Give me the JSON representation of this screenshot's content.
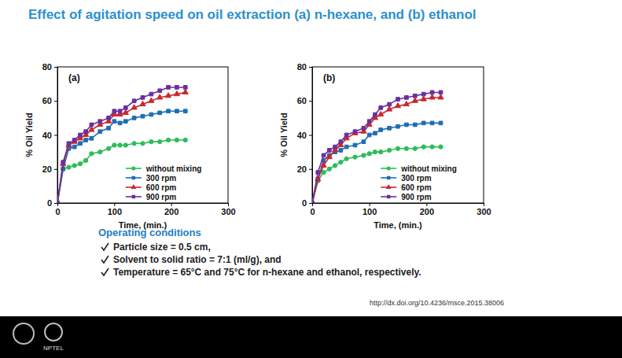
{
  "slide": {
    "title": "Effect of agitation speed on oil extraction (a) n-hexane, and (b) ethanol",
    "conditions_heading": "Operating conditions",
    "conditions": [
      "Particle size = 0.5 cm,",
      "Solvent to solid ratio = 7:1 (ml/g), and",
      "Temperature = 65°C and 75°C for n-hexane and ethanol, respectively."
    ],
    "source": "http://dx.doi.org/10.4236/msce.2015.38006"
  },
  "footer": {
    "label": "NPTEL"
  },
  "chart_data": [
    {
      "type": "line",
      "title": "(a)",
      "x_label": "Time, (min.)",
      "y_label": "% Oil Yield",
      "x": [
        0,
        10,
        20,
        30,
        40,
        50,
        60,
        75,
        90,
        100,
        110,
        120,
        135,
        150,
        165,
        180,
        195,
        210,
        225
      ],
      "xlim": [
        0,
        300
      ],
      "xticks": [
        0,
        100,
        200,
        300
      ],
      "ylim": [
        0,
        80
      ],
      "yticks": [
        0,
        20,
        40,
        60,
        80
      ],
      "grid": false,
      "legend": "lower right",
      "series": [
        {
          "name": "without mixing",
          "color": "#2dbd5a",
          "marker": "circle",
          "values": [
            0,
            20,
            21,
            22,
            23,
            25,
            29,
            30,
            32,
            34,
            34,
            34,
            35,
            35,
            36,
            36,
            37,
            37,
            37
          ]
        },
        {
          "name": "300 rpm",
          "color": "#1f6db5",
          "marker": "square",
          "values": [
            0,
            20,
            32,
            33,
            35,
            37,
            38,
            42,
            44,
            48,
            47,
            48,
            50,
            51,
            52,
            53,
            54,
            54,
            54
          ]
        },
        {
          "name": "600 rpm",
          "color": "#c8282e",
          "marker": "triangle",
          "values": [
            0,
            23,
            34,
            36,
            38,
            40,
            43,
            46,
            48,
            52,
            52,
            53,
            56,
            58,
            60,
            62,
            63,
            64,
            65
          ]
        },
        {
          "name": "900 rpm",
          "color": "#6a2fa0",
          "marker": "square",
          "values": [
            0,
            24,
            35,
            37,
            40,
            42,
            46,
            48,
            50,
            54,
            54,
            56,
            60,
            62,
            64,
            66,
            68,
            68,
            68
          ]
        }
      ]
    },
    {
      "type": "line",
      "title": "(b)",
      "x_label": "Time, (min.)",
      "y_label": "% Oil Yield",
      "x": [
        0,
        10,
        20,
        30,
        40,
        50,
        60,
        75,
        90,
        100,
        110,
        120,
        135,
        150,
        165,
        180,
        195,
        210,
        225
      ],
      "xlim": [
        0,
        300
      ],
      "xticks": [
        0,
        100,
        200,
        300
      ],
      "ylim": [
        0,
        80
      ],
      "yticks": [
        0,
        20,
        40,
        60,
        80
      ],
      "grid": false,
      "legend": "lower right",
      "series": [
        {
          "name": "without mixing",
          "color": "#2dbd5a",
          "marker": "circle",
          "values": [
            0,
            13,
            18,
            20,
            22,
            24,
            26,
            27,
            28,
            29,
            30,
            30,
            31,
            32,
            32,
            32,
            33,
            33,
            33
          ]
        },
        {
          "name": "300 rpm",
          "color": "#1f6db5",
          "marker": "square",
          "values": [
            0,
            14,
            25,
            28,
            30,
            31,
            33,
            34,
            36,
            40,
            41,
            43,
            44,
            45,
            46,
            46,
            47,
            47,
            47
          ]
        },
        {
          "name": "600 rpm",
          "color": "#c8282e",
          "marker": "triangle",
          "values": [
            0,
            14,
            22,
            27,
            31,
            34,
            38,
            41,
            42,
            46,
            50,
            52,
            55,
            57,
            58,
            60,
            61,
            62,
            62
          ]
        },
        {
          "name": "900 rpm",
          "color": "#6a2fa0",
          "marker": "square",
          "values": [
            0,
            18,
            28,
            31,
            33,
            36,
            40,
            42,
            44,
            48,
            52,
            56,
            58,
            61,
            62,
            63,
            64,
            65,
            65
          ]
        }
      ]
    }
  ]
}
